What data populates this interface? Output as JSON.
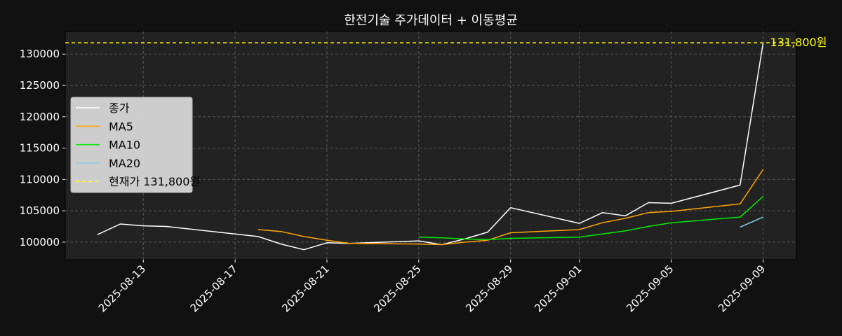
{
  "chart_data": {
    "type": "line",
    "title": "한전기술 주가데이터 + 이동평균",
    "xlabel": "",
    "ylabel": "",
    "x": [
      "2025-08-11",
      "2025-08-12",
      "2025-08-13",
      "2025-08-14",
      "2025-08-18",
      "2025-08-19",
      "2025-08-20",
      "2025-08-21",
      "2025-08-22",
      "2025-08-25",
      "2025-08-26",
      "2025-08-27",
      "2025-08-28",
      "2025-08-29",
      "2025-09-01",
      "2025-09-02",
      "2025-09-03",
      "2025-09-04",
      "2025-09-05",
      "2025-09-08",
      "2025-09-09"
    ],
    "x_ticks": [
      "2025-08-13",
      "2025-08-17",
      "2025-08-21",
      "2025-08-25",
      "2025-08-29",
      "2025-09-01",
      "2025-09-05",
      "2025-09-09"
    ],
    "xlim": [
      "2025-08-09.6",
      "2025-09-10.45"
    ],
    "ylim": [
      97200,
      133600
    ],
    "y_ticks": [
      100000,
      105000,
      110000,
      115000,
      120000,
      125000,
      130000
    ],
    "grid": true,
    "legend_position": "center-left",
    "series": [
      {
        "name": "종가",
        "color": "#ffffff",
        "style": "solid",
        "values": [
          101200,
          102900,
          102600,
          102500,
          100900,
          99700,
          98800,
          99900,
          99800,
          100200,
          99600,
          100500,
          101600,
          105500,
          103000,
          104700,
          104200,
          106300,
          106200,
          109100,
          131800
        ]
      },
      {
        "name": "MA5",
        "color": "#ffa500",
        "style": "solid",
        "values": [
          null,
          null,
          null,
          null,
          102000,
          101700,
          100900,
          100300,
          99800,
          99700,
          99600,
          100000,
          100300,
          101500,
          102000,
          103100,
          103800,
          104700,
          104900,
          106100,
          111600
        ]
      },
      {
        "name": "MA10",
        "color": "#00ee00",
        "style": "solid",
        "values": [
          null,
          null,
          null,
          null,
          null,
          null,
          null,
          null,
          null,
          100800,
          100700,
          100500,
          100400,
          100600,
          100800,
          101300,
          101800,
          102500,
          103100,
          104000,
          107300
        ]
      },
      {
        "name": "MA20",
        "color": "#87ceeb",
        "style": "solid",
        "values": [
          null,
          null,
          null,
          null,
          null,
          null,
          null,
          null,
          null,
          null,
          null,
          null,
          null,
          null,
          null,
          null,
          null,
          null,
          null,
          102400,
          104000
        ]
      }
    ],
    "reference_line": {
      "name": "현재가 131,800원",
      "value": 131800,
      "label": "131,800원",
      "color": "#ffff00",
      "style": "dashed"
    }
  }
}
